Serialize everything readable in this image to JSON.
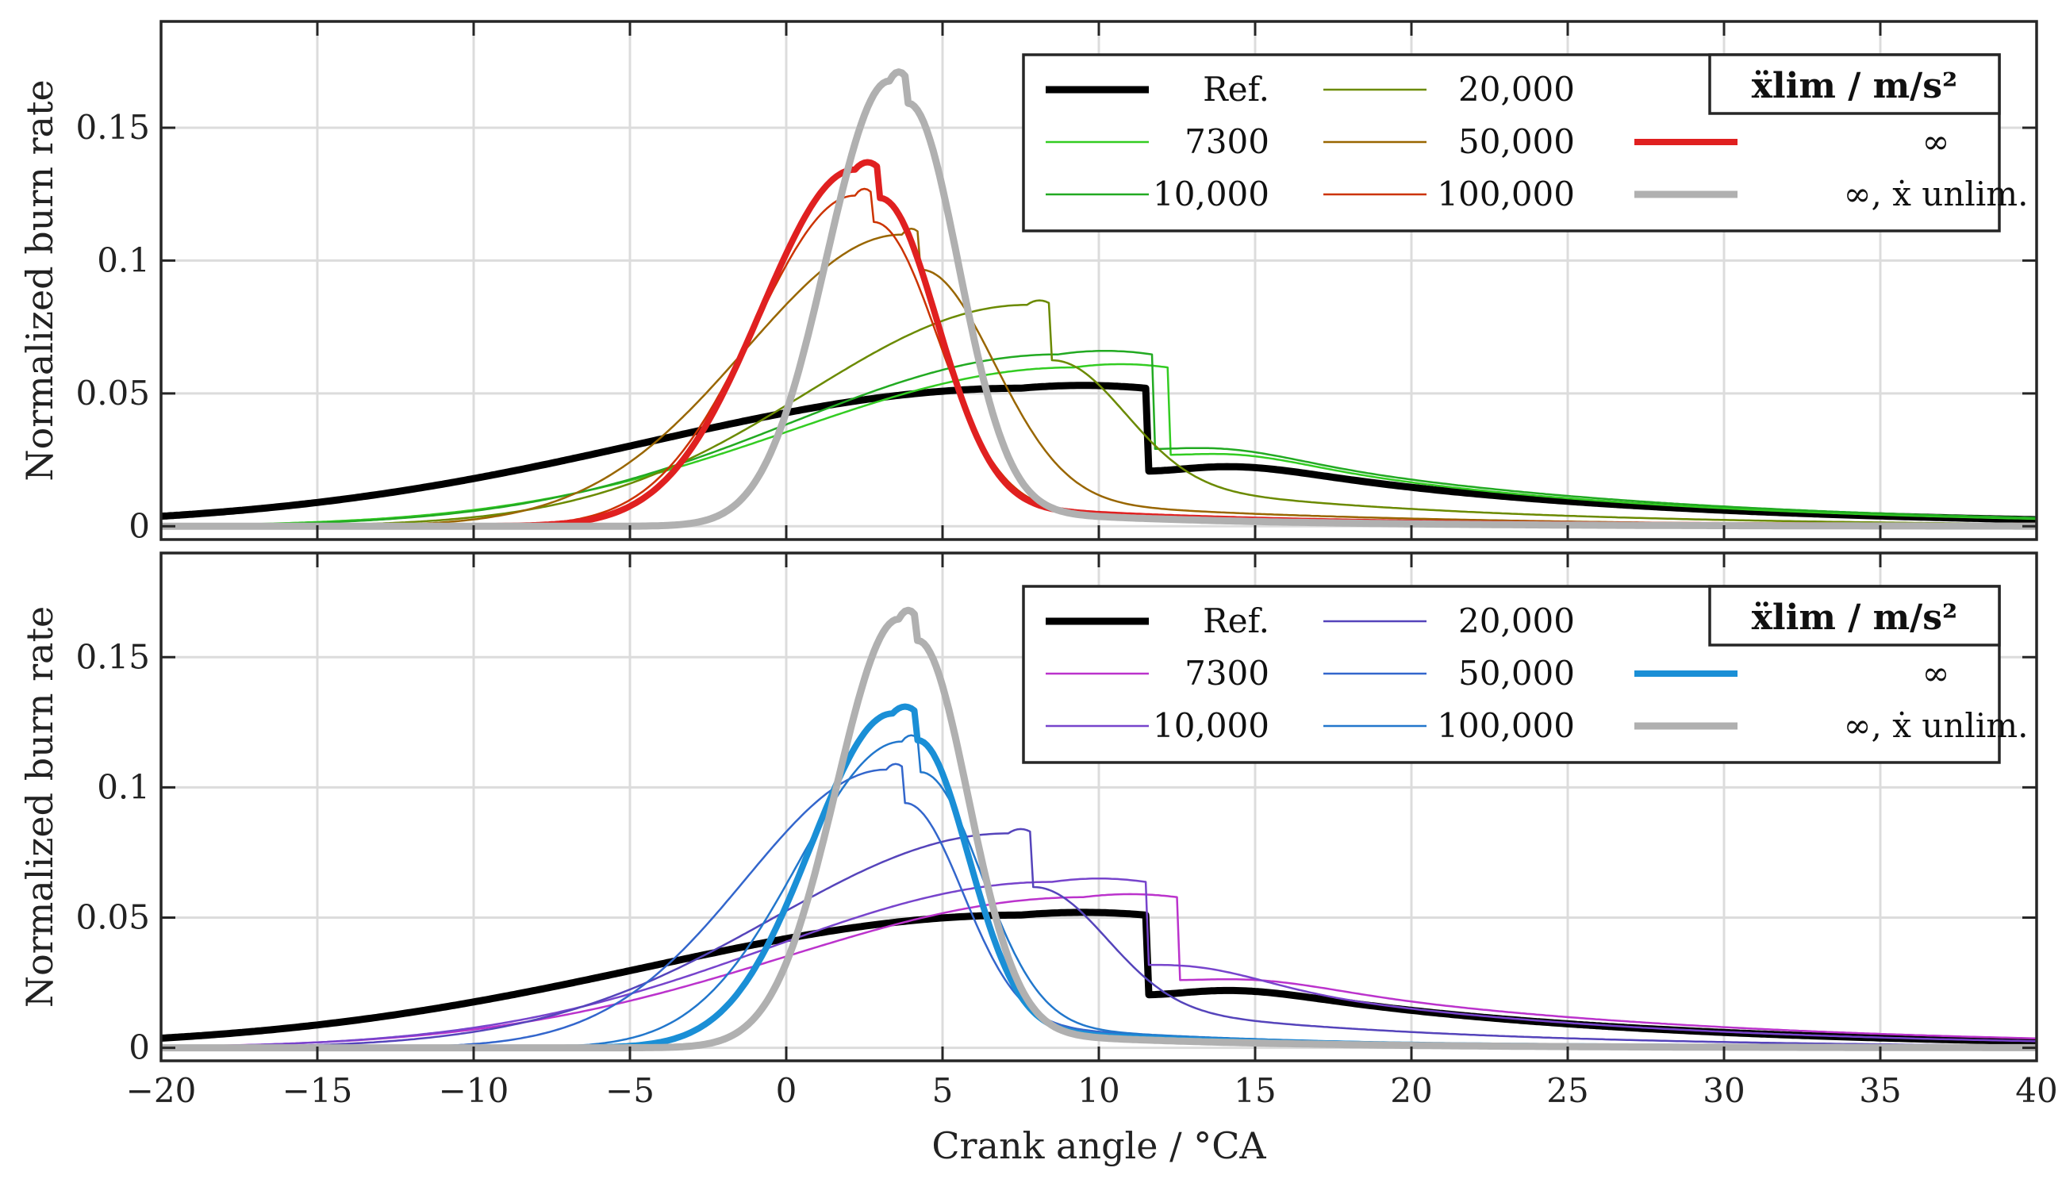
{
  "chart_data": [
    {
      "type": "line",
      "panel": "top",
      "title": "",
      "xlabel": "",
      "ylabel": "Normalized burn rate",
      "xlim": [
        -20,
        40
      ],
      "ylim": [
        -0.005,
        0.19
      ],
      "grid": true,
      "xticks": [
        -20,
        -15,
        -10,
        -5,
        0,
        5,
        10,
        15,
        20,
        25,
        30,
        35,
        40
      ],
      "xtick_labels_visible": false,
      "yticks": [
        0,
        0.05,
        0.1,
        0.15
      ],
      "ytick_labels": [
        "0",
        "0.05",
        "0.1",
        "0.15"
      ],
      "legend_position": "top-right",
      "legend_title": "ẍlim / m/s²",
      "series": [
        {
          "name": "Ref.",
          "color": "#000000",
          "width": 9,
          "center": 9.5,
          "peak": 0.053,
          "sl": 12,
          "sr": 2.5,
          "flat": 2.0,
          "tail": 0.6
        },
        {
          "name": "7300",
          "color": "#33cc22",
          "width": 2.5,
          "center": 10.7,
          "peak": 0.061,
          "sl": 9,
          "sr": 2.5,
          "flat": 1.5,
          "tail": 0.55
        },
        {
          "name": "10,000",
          "color": "#22aa22",
          "width": 2.5,
          "center": 10.2,
          "peak": 0.066,
          "sl": 8.5,
          "sr": 2.6,
          "flat": 1.5,
          "tail": 0.55
        },
        {
          "name": "20,000",
          "color": "#6b8a00",
          "width": 2.5,
          "center": 8.1,
          "peak": 0.085,
          "sl": 7,
          "sr": 2.2,
          "flat": 0.4,
          "tail": 0.25
        },
        {
          "name": "50,000",
          "color": "#996600",
          "width": 2.5,
          "center": 4.0,
          "peak": 0.112,
          "sl": 5.0,
          "sr": 2.3,
          "flat": 0.3,
          "tail": 0.12
        },
        {
          "name": "100,000",
          "color": "#cc3300",
          "width": 2.5,
          "center": 2.5,
          "peak": 0.127,
          "sl": 3.2,
          "sr": 2.0,
          "flat": 0.3,
          "tail": 0.08
        },
        {
          "name": "∞",
          "color": "#e02020",
          "width": 8,
          "center": 2.6,
          "peak": 0.137,
          "sl": 3.0,
          "sr": 1.8,
          "flat": 0.4,
          "tail": 0.08
        },
        {
          "name": "∞, ẋ unlim.",
          "color": "#b0b0b0",
          "width": 9,
          "center": 3.6,
          "peak": 0.171,
          "sl": 2.0,
          "sr": 1.6,
          "flat": 0.3,
          "tail": 0.05
        }
      ]
    },
    {
      "type": "line",
      "panel": "bottom",
      "title": "",
      "xlabel": "Crank angle / °CA",
      "ylabel": "Normalized burn rate",
      "xlim": [
        -20,
        40
      ],
      "ylim": [
        -0.005,
        0.19
      ],
      "grid": true,
      "xticks": [
        -20,
        -15,
        -10,
        -5,
        0,
        5,
        10,
        15,
        20,
        25,
        30,
        35,
        40
      ],
      "xtick_labels": [
        "−20",
        "−15",
        "−10",
        "−5",
        "0",
        "5",
        "10",
        "15",
        "20",
        "25",
        "30",
        "35",
        "40"
      ],
      "yticks": [
        0,
        0.05,
        0.1,
        0.15
      ],
      "ytick_labels": [
        "0",
        "0.05",
        "0.1",
        "0.15"
      ],
      "legend_position": "top-right",
      "legend_title": "ẍlim / m/s²",
      "series": [
        {
          "name": "Ref.",
          "color": "#000000",
          "width": 9,
          "center": 9.5,
          "peak": 0.052,
          "sl": 12,
          "sr": 2.5,
          "flat": 2.0,
          "tail": 0.6
        },
        {
          "name": "7300",
          "color": "#bb33cc",
          "width": 2.5,
          "center": 11.0,
          "peak": 0.059,
          "sl": 9.5,
          "sr": 2.8,
          "flat": 1.5,
          "tail": 0.55
        },
        {
          "name": "10,000",
          "color": "#7744cc",
          "width": 2.5,
          "center": 10.0,
          "peak": 0.065,
          "sl": 9,
          "sr": 2.5,
          "flat": 1.5,
          "tail": 0.5
        },
        {
          "name": "20,000",
          "color": "#5544bb",
          "width": 2.5,
          "center": 7.5,
          "peak": 0.084,
          "sl": 7.5,
          "sr": 2.2,
          "flat": 0.4,
          "tail": 0.25
        },
        {
          "name": "50,000",
          "color": "#3366cc",
          "width": 2.5,
          "center": 3.5,
          "peak": 0.109,
          "sl": 4.5,
          "sr": 1.8,
          "flat": 0.3,
          "tail": 0.12
        },
        {
          "name": "100,000",
          "color": "#2277cc",
          "width": 2.5,
          "center": 4.0,
          "peak": 0.12,
          "sl": 3.3,
          "sr": 1.9,
          "flat": 0.3,
          "tail": 0.1
        },
        {
          "name": "∞",
          "color": "#1a8fd6",
          "width": 8,
          "center": 3.8,
          "peak": 0.131,
          "sl": 2.6,
          "sr": 1.6,
          "flat": 0.4,
          "tail": 0.08
        },
        {
          "name": "∞, ẋ unlim.",
          "color": "#b0b0b0",
          "width": 9,
          "center": 3.9,
          "peak": 0.168,
          "sl": 2.0,
          "sr": 1.6,
          "flat": 0.3,
          "tail": 0.05
        }
      ]
    }
  ]
}
